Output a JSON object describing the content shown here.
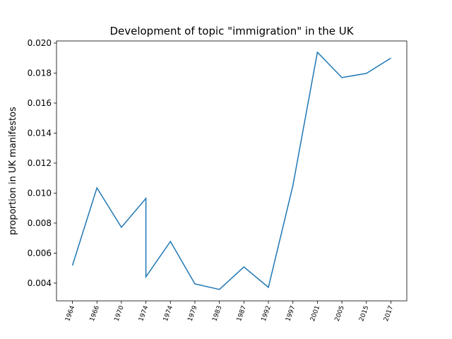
{
  "chart_data": {
    "type": "line",
    "title": "Development of topic \"immigration\" in the UK",
    "ylabel": "proportion in UK manifestos",
    "x": [
      0,
      1,
      2,
      3,
      3,
      4,
      5,
      6,
      7,
      8,
      9,
      10,
      11,
      12,
      13
    ],
    "values": [
      0.00518,
      0.01035,
      0.00772,
      0.00965,
      0.00442,
      0.00678,
      0.00395,
      0.00358,
      0.00508,
      0.00372,
      0.0105,
      0.01939,
      0.0177,
      0.01798,
      0.019
    ],
    "color": "#1f77b4",
    "xlim": [
      -0.65,
      13.65
    ],
    "xticks": [
      {
        "value": 0,
        "label": "1964"
      },
      {
        "value": 1,
        "label": "1966"
      },
      {
        "value": 2,
        "label": "1970"
      },
      {
        "value": 3,
        "label": "1974"
      },
      {
        "value": 4,
        "label": "1974"
      },
      {
        "value": 5,
        "label": "1979"
      },
      {
        "value": 6,
        "label": "1983"
      },
      {
        "value": 7,
        "label": "1987"
      },
      {
        "value": 8,
        "label": "1992"
      },
      {
        "value": 9,
        "label": "1997"
      },
      {
        "value": 10,
        "label": "2001"
      },
      {
        "value": 11,
        "label": "2005"
      },
      {
        "value": 12,
        "label": "2015"
      },
      {
        "value": 13,
        "label": "2017"
      }
    ],
    "ylim": [
      0.00282,
      0.02014
    ],
    "yticks": [
      {
        "value": 0.004,
        "label": "0.004"
      },
      {
        "value": 0.006,
        "label": "0.006"
      },
      {
        "value": 0.008,
        "label": "0.008"
      },
      {
        "value": 0.01,
        "label": "0.010"
      },
      {
        "value": 0.012,
        "label": "0.012"
      },
      {
        "value": 0.014,
        "label": "0.014"
      },
      {
        "value": 0.016,
        "label": "0.016"
      },
      {
        "value": 0.018,
        "label": "0.018"
      },
      {
        "value": 0.02,
        "label": "0.020"
      }
    ],
    "grid": false
  }
}
